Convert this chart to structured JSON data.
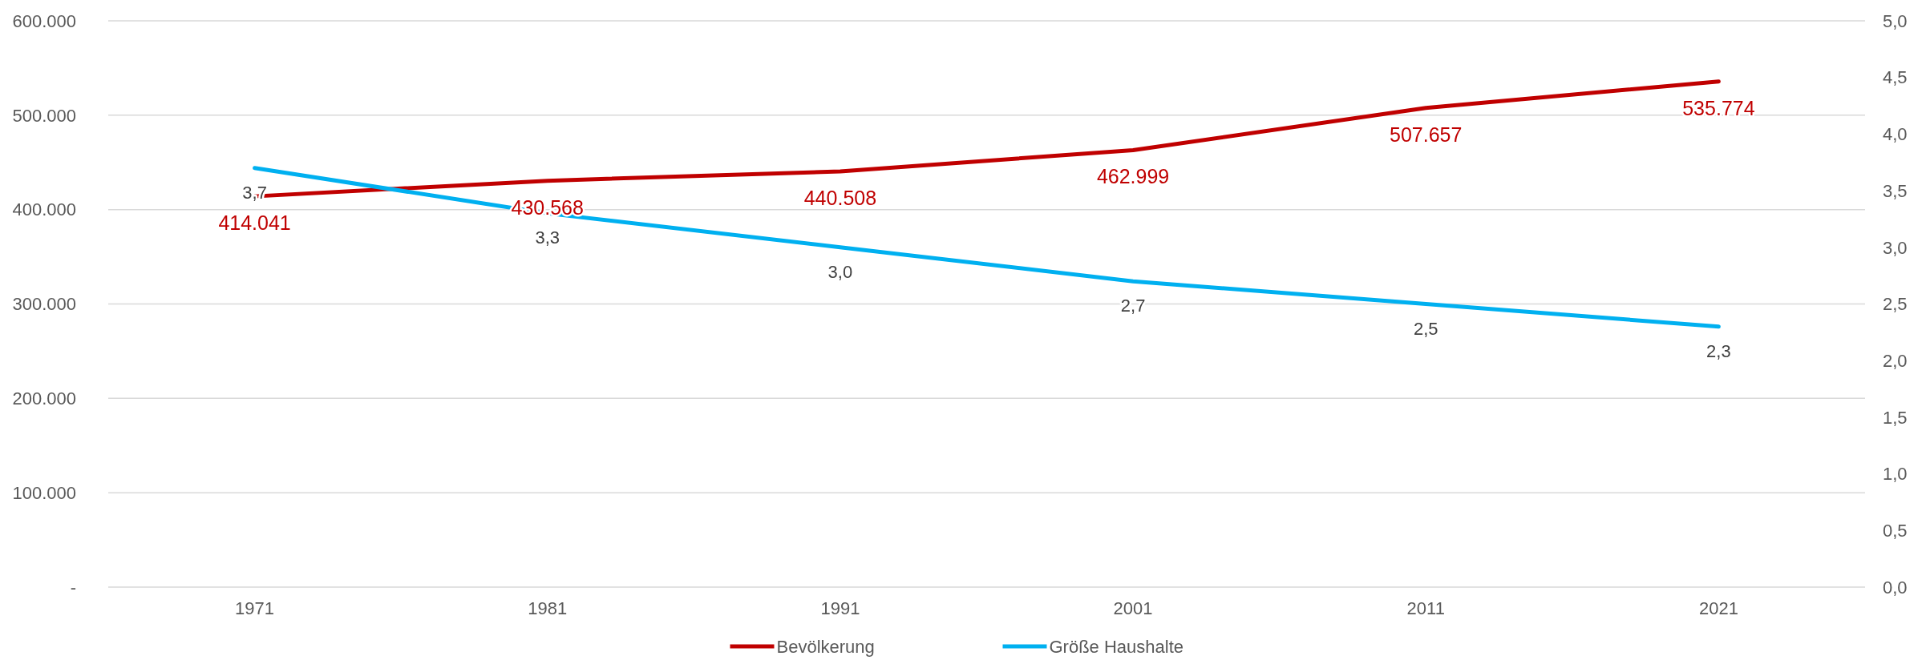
{
  "chart_data": {
    "type": "line",
    "categories": [
      "1971",
      "1981",
      "1991",
      "2001",
      "2011",
      "2021"
    ],
    "series": [
      {
        "name": "Bevölkerung",
        "color": "#c00000",
        "values": [
          414041,
          430568,
          440508,
          462999,
          507657,
          535774
        ],
        "value_labels": [
          "414.041",
          "430.568",
          "440.508",
          "462.999",
          "507.657",
          "535.774"
        ]
      },
      {
        "name": "Größe Haushalte",
        "color": "#00b0f0",
        "axis": "y2",
        "values": [
          3.7,
          3.3,
          3.0,
          2.7,
          2.5,
          2.3
        ],
        "value_labels": [
          "3,7",
          "3,3",
          "3,0",
          "2,7",
          "2,5",
          "2,3"
        ]
      }
    ],
    "ylim": [
      0,
      600000
    ],
    "yticks": [
      {
        "value": 0,
        "label": "-"
      },
      {
        "value": 100000,
        "label": "100.000"
      },
      {
        "value": 200000,
        "label": "200.000"
      },
      {
        "value": 300000,
        "label": "300.000"
      },
      {
        "value": 400000,
        "label": "400.000"
      },
      {
        "value": 500000,
        "label": "500.000"
      },
      {
        "value": 600000,
        "label": "600.000"
      }
    ],
    "y2lim": [
      0,
      5
    ],
    "y2ticks": [
      {
        "value": 0,
        "label": "0,0"
      },
      {
        "value": 0.5,
        "label": "0,5"
      },
      {
        "value": 1,
        "label": "1,0"
      },
      {
        "value": 1.5,
        "label": "1,5"
      },
      {
        "value": 2,
        "label": "2,0"
      },
      {
        "value": 2.5,
        "label": "2,5"
      },
      {
        "value": 3,
        "label": "3,0"
      },
      {
        "value": 3.5,
        "label": "3,5"
      },
      {
        "value": 4,
        "label": "4,0"
      },
      {
        "value": 4.5,
        "label": "4,5"
      },
      {
        "value": 5,
        "label": "5,0"
      }
    ],
    "grid": "y",
    "legend": "bottom",
    "marker": "none",
    "line_style": "solid"
  }
}
